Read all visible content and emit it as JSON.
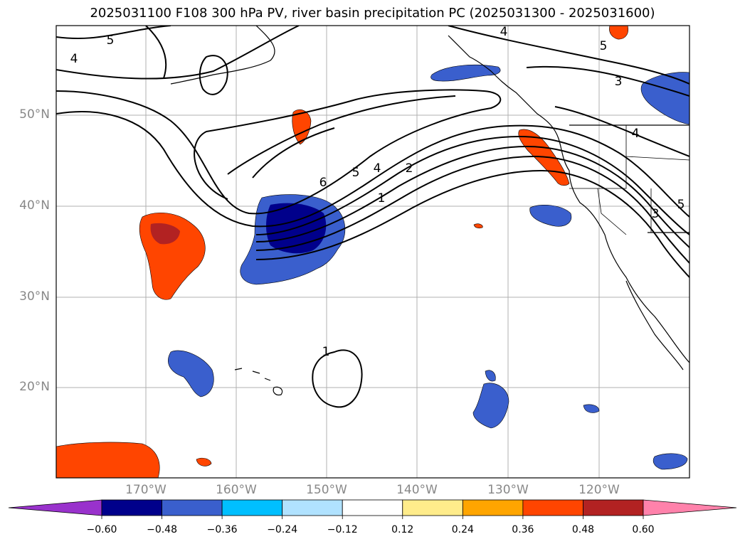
{
  "title": "2025031100 F108 300 hPa PV, river basin precipitation PC (2025031300 - 2025031600)",
  "lat_labels": [
    "50°N",
    "40°N",
    "30°N",
    "20°N"
  ],
  "lon_labels": [
    "170°W",
    "160°W",
    "150°W",
    "140°W",
    "130°W",
    "120°W"
  ],
  "contour_labels": [
    "5",
    "4",
    "4",
    "5",
    "3",
    "6",
    "5",
    "4",
    "2",
    "1",
    "1",
    "4",
    "3",
    "5"
  ],
  "colorbar": {
    "ticks": [
      "−0.60",
      "−0.48",
      "−0.36",
      "−0.24",
      "−0.12",
      "0.12",
      "0.24",
      "0.36",
      "0.48",
      "0.60"
    ],
    "colors": [
      "#9932cc",
      "#00008b",
      "#3a5fcd",
      "#00bfff",
      "#b0e2ff",
      "#ffffff",
      "#ffec8b",
      "#ffa500",
      "#ff4500",
      "#b22222",
      "#ff82ab"
    ]
  }
}
